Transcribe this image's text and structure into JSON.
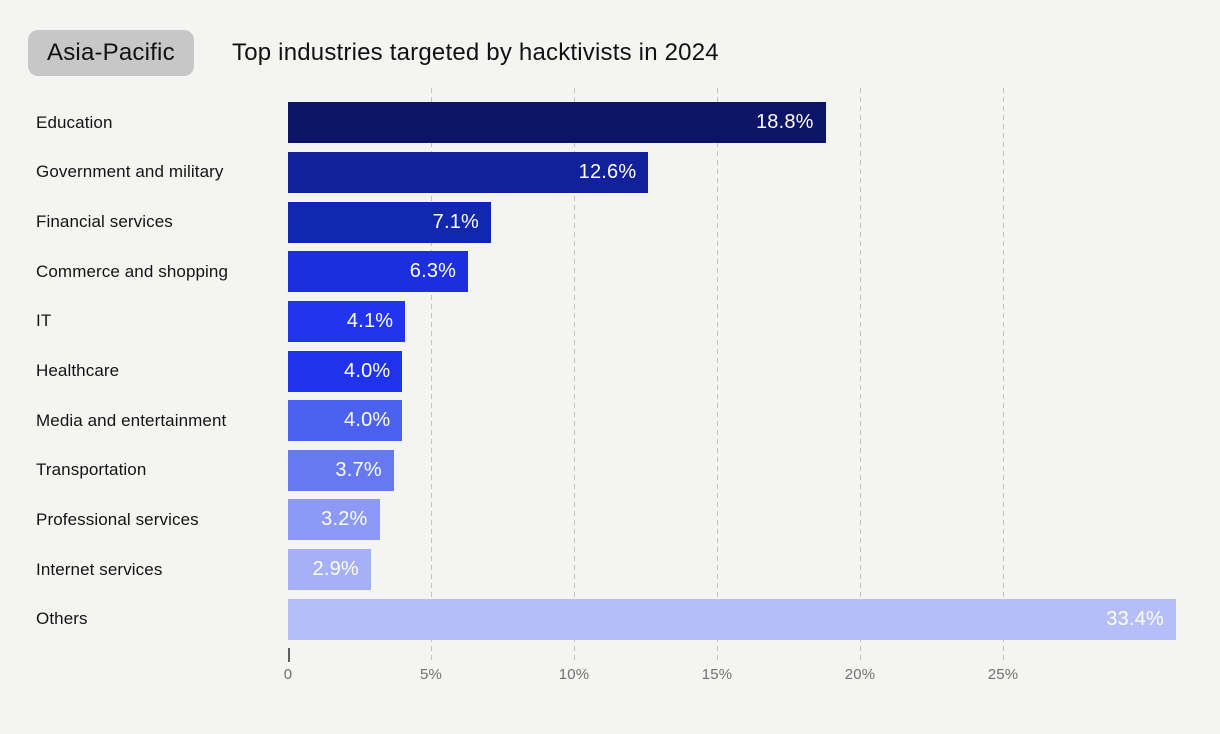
{
  "header": {
    "region_badge": "Asia-Pacific",
    "title": "Top industries targeted by hacktivists in 2024"
  },
  "chart_data": {
    "type": "bar",
    "orientation": "horizontal",
    "title": "Top industries targeted by hacktivists in 2024",
    "categories": [
      "Education",
      "Government and military",
      "Financial services",
      "Commerce and shopping",
      "IT",
      "Healthcare",
      "Media and entertainment",
      "Transportation",
      "Professional services",
      "Internet services",
      "Others"
    ],
    "values": [
      18.8,
      12.6,
      7.1,
      6.3,
      4.1,
      4.0,
      4.0,
      3.7,
      3.2,
      2.9,
      33.4
    ],
    "value_labels": [
      "18.8%",
      "12.6%",
      "7.1%",
      "6.3%",
      "4.1%",
      "4.0%",
      "4.0%",
      "3.7%",
      "3.2%",
      "2.9%",
      "33.4%"
    ],
    "bar_colors": [
      "#0b1467",
      "#11219b",
      "#1227b0",
      "#1b2fde",
      "#2135ef",
      "#1f33ed",
      "#4d61f0",
      "#6679f2",
      "#8c99f5",
      "#a6b0f8",
      "#b6befa"
    ],
    "xlabel": "",
    "ylabel": "",
    "x_ticks": [
      "0",
      "5%",
      "10%",
      "15%",
      "20%",
      "25%"
    ],
    "x_tick_values": [
      0,
      5,
      10,
      15,
      20,
      25
    ],
    "xlim": [
      0,
      31.05
    ],
    "grid": "dashed-vertical",
    "legend": "none",
    "bar_labels_position": "inside-end",
    "last_bar_clipped": true
  },
  "colors": {
    "background": "#f4f4f2",
    "badge_background": "#c7c7c7",
    "text_primary": "#121212",
    "axis_text": "#717171",
    "gridline": "#c3c3c3",
    "bar_value_text": "#ffffff"
  }
}
